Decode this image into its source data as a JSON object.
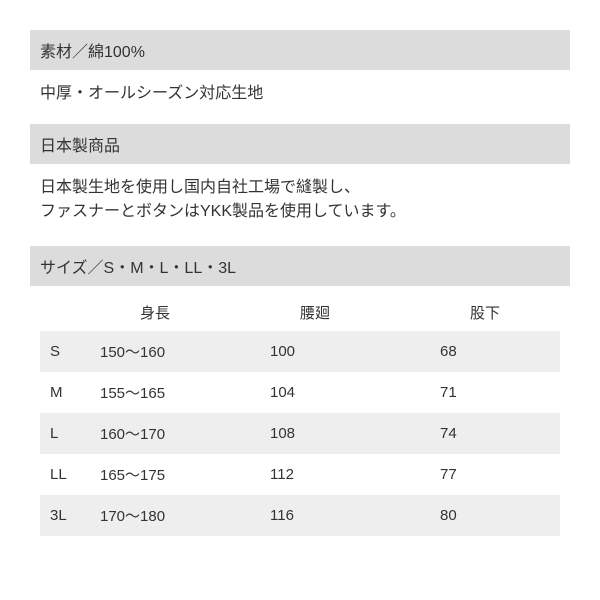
{
  "colors": {
    "header_bg": "#dcdcdc",
    "stripe_bg": "#eeeeee",
    "text": "#333333",
    "page_bg": "#ffffff"
  },
  "typography": {
    "base_fontsize": 16,
    "table_fontsize": 15,
    "line_height": 1.5
  },
  "sections": {
    "material": {
      "header": "素材／綿100%",
      "body": "中厚・オールシーズン対応生地"
    },
    "made_in": {
      "header": "日本製商品",
      "body_line1": "日本製生地を使用し国内自社工場で縫製し、",
      "body_line2": "ファスナーとボタンはYKK製品を使用しています。"
    },
    "size": {
      "header": "サイズ／S・M・L・LL・3L",
      "columns": {
        "size": "",
        "height": "身長",
        "waist": "腰廻",
        "inseam": "股下"
      },
      "rows": [
        {
          "size": "S",
          "height": "150～160",
          "waist": "100",
          "inseam": "68",
          "striped": true
        },
        {
          "size": "M",
          "height": "155～165",
          "waist": "104",
          "inseam": "71",
          "striped": false
        },
        {
          "size": "L",
          "height": "160～170",
          "waist": "108",
          "inseam": "74",
          "striped": true
        },
        {
          "size": "LL",
          "height": "165～175",
          "waist": "112",
          "inseam": "77",
          "striped": false
        },
        {
          "size": "3L",
          "height": "170～180",
          "waist": "116",
          "inseam": "80",
          "striped": true
        }
      ]
    }
  }
}
